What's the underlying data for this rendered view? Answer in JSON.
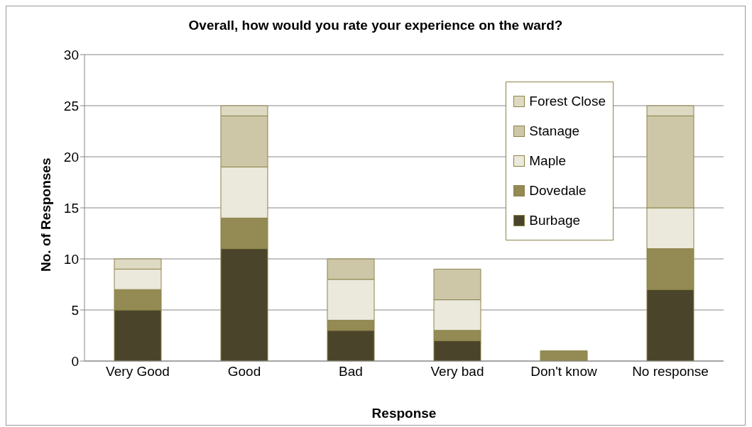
{
  "chart_data": {
    "type": "bar",
    "title": "Overall, how would you rate your experience on the ward?",
    "xlabel": "Response",
    "ylabel": "No. of Responses",
    "categories": [
      "Very Good",
      "Good",
      "Bad",
      "Very bad",
      "Don't know",
      "No response"
    ],
    "stacked": true,
    "series": [
      {
        "name": "Burbage",
        "color": "#4a452a",
        "values": [
          5,
          11,
          3,
          2,
          0,
          7
        ]
      },
      {
        "name": "Dovedale",
        "color": "#948a54",
        "values": [
          2,
          3,
          1,
          1,
          1,
          4
        ]
      },
      {
        "name": "Maple",
        "color": "#ebe8dc",
        "values": [
          2,
          5,
          4,
          3,
          0,
          4
        ]
      },
      {
        "name": "Stanage",
        "color": "#cdc7a8",
        "values": [
          0,
          5,
          2,
          3,
          0,
          9
        ]
      },
      {
        "name": "Forest Close",
        "color": "#ddd9c3",
        "values": [
          1,
          1,
          0,
          0,
          0,
          1
        ]
      }
    ],
    "ylim": [
      0,
      30
    ],
    "yticks": [
      0,
      5,
      10,
      15,
      20,
      25,
      30
    ],
    "grid": "y",
    "legend": "top right"
  }
}
